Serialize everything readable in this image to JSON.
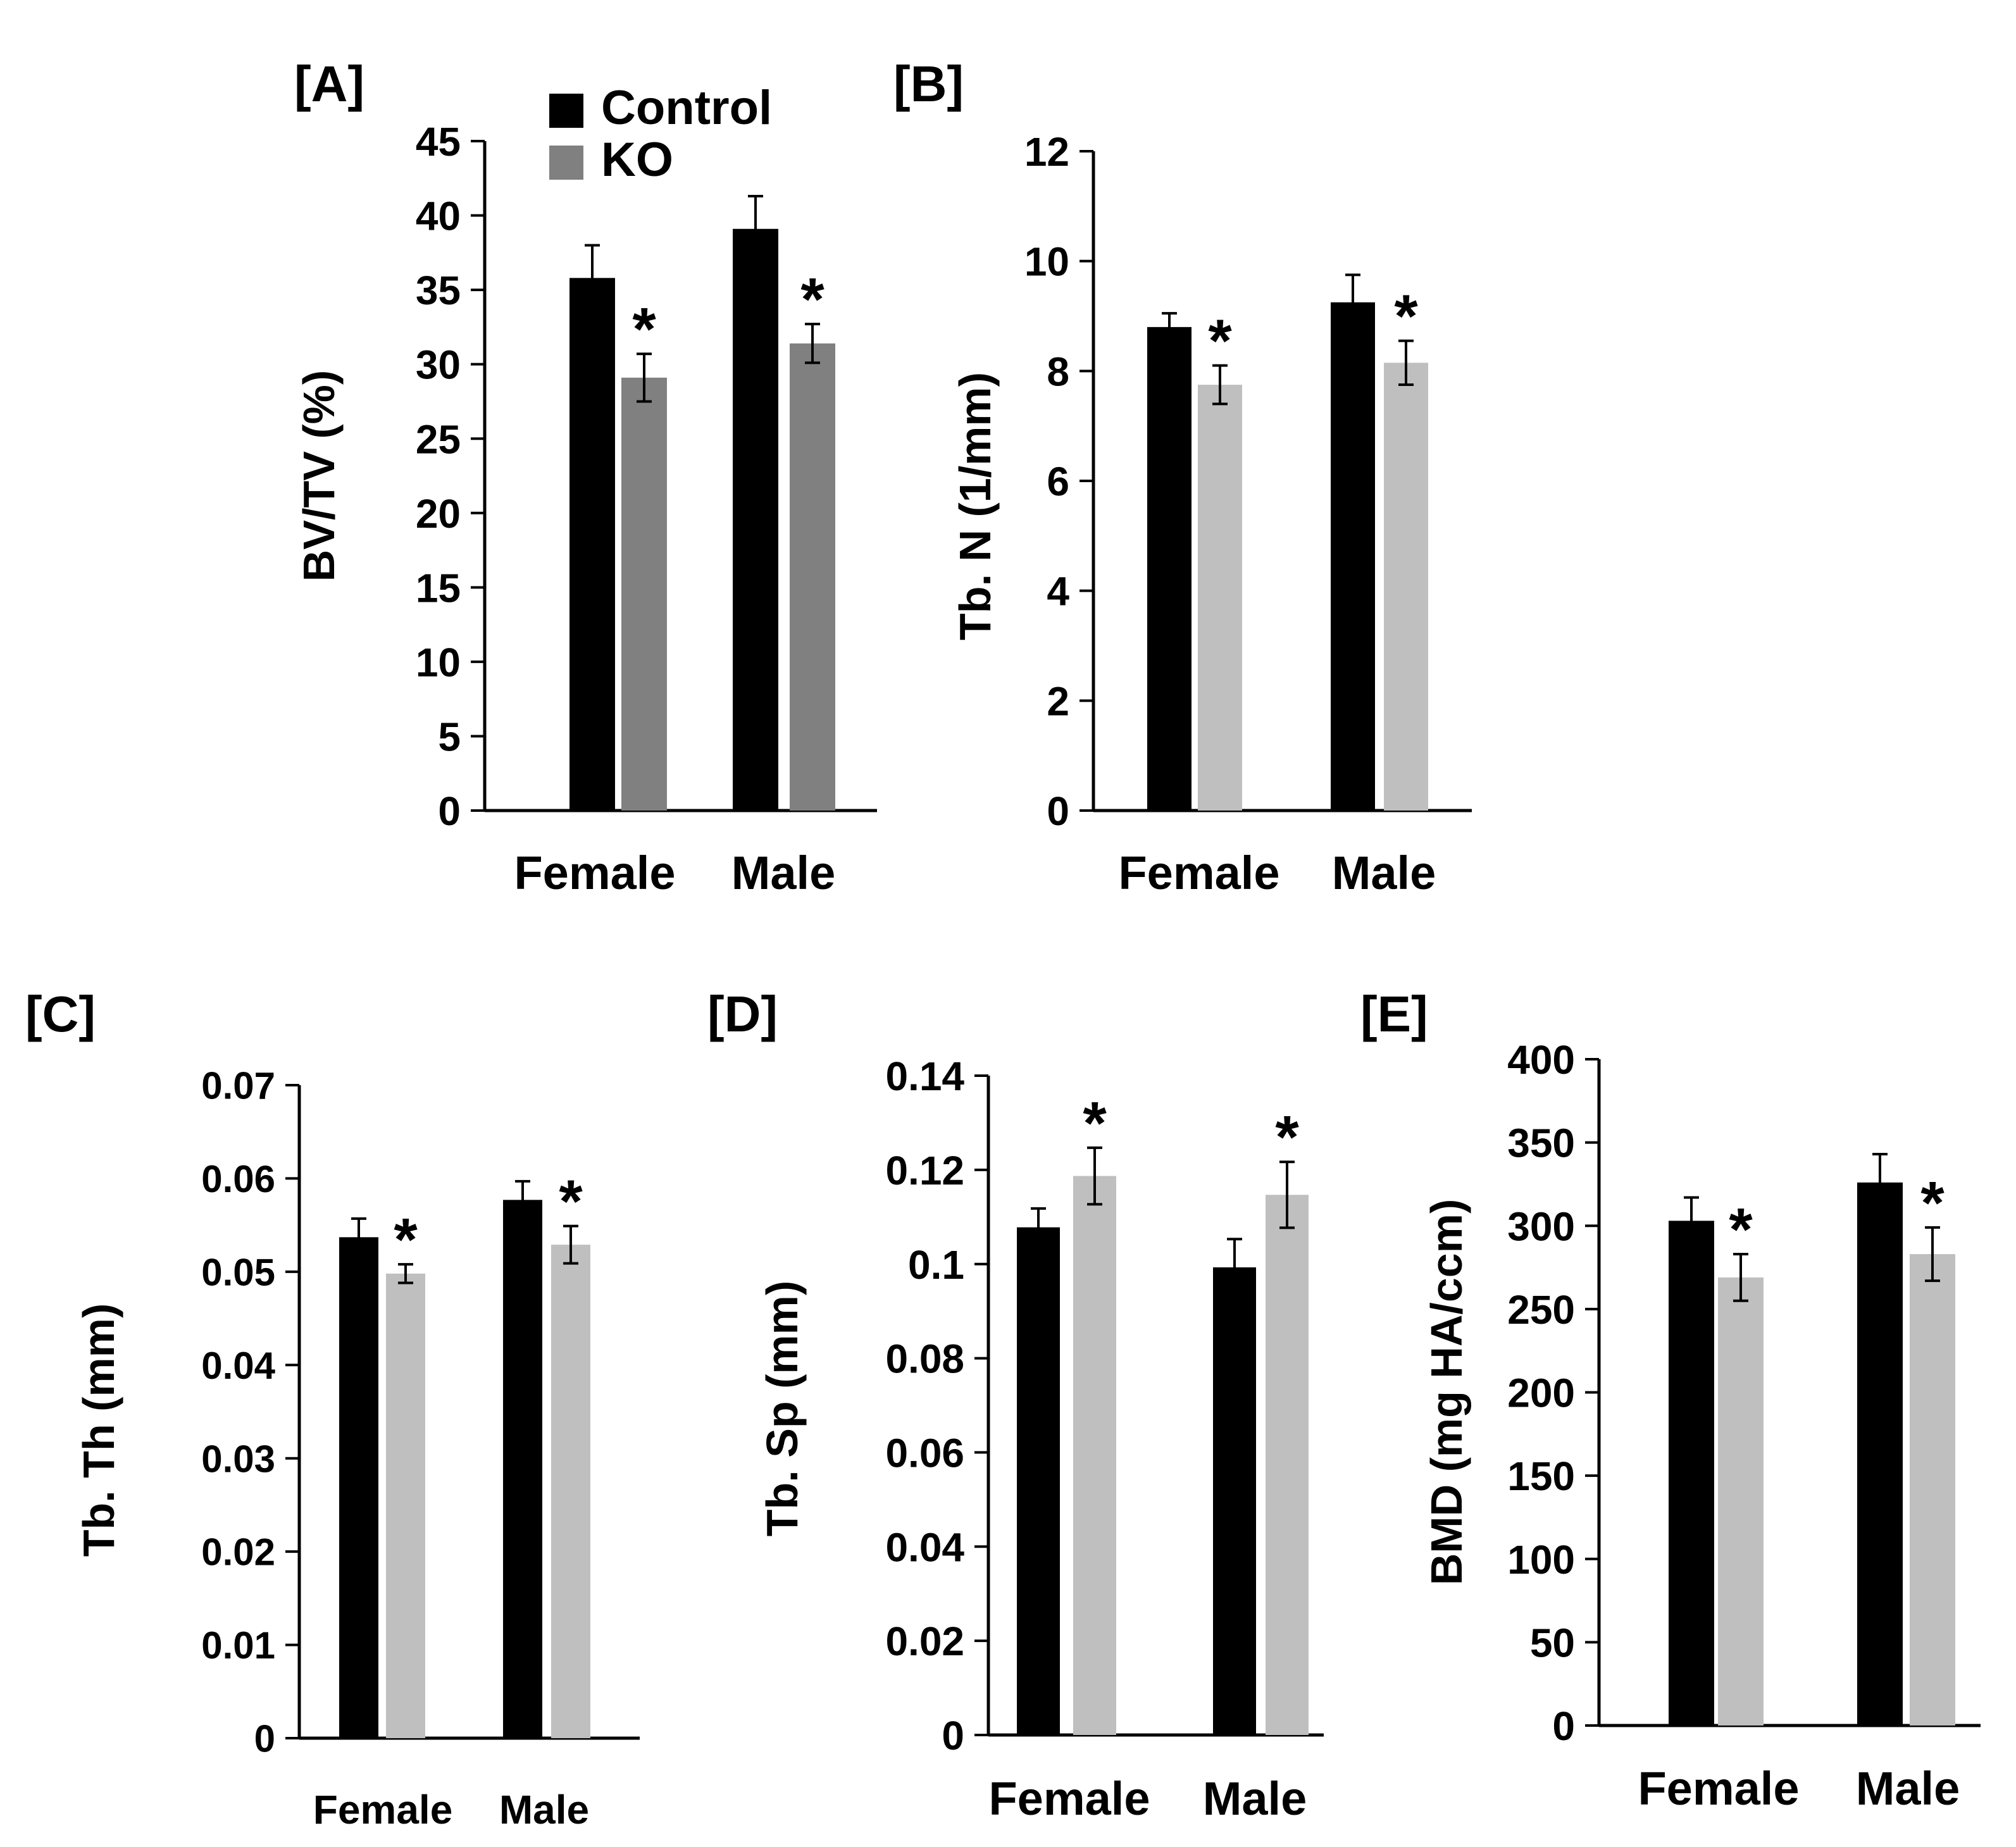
{
  "legend": {
    "items": [
      {
        "label": "Control",
        "color": "#000000"
      },
      {
        "label": "KO",
        "color": "#808080"
      }
    ]
  },
  "chart_data": [
    {
      "panel": "[A]",
      "type": "bar",
      "ylabel": "BV/TV (%)",
      "ylim": [
        0,
        45
      ],
      "yticks": [
        0,
        5,
        10,
        15,
        20,
        25,
        30,
        35,
        40,
        45
      ],
      "categories": [
        "Female",
        "Male"
      ],
      "series": [
        {
          "name": "Control",
          "color": "#000000",
          "values": [
            35.8,
            39.1
          ],
          "errors": [
            2.2,
            2.2
          ]
        },
        {
          "name": "KO",
          "color": "#808080",
          "values": [
            29.1,
            31.4
          ],
          "errors": [
            1.6,
            1.3
          ]
        }
      ],
      "significance": [
        [
          false,
          true
        ],
        [
          false,
          true
        ]
      ]
    },
    {
      "panel": "[B]",
      "type": "bar",
      "ylabel": "Tb. N (1/mm)",
      "ylim": [
        0,
        12
      ],
      "yticks": [
        0,
        2,
        4,
        6,
        8,
        10,
        12
      ],
      "categories": [
        "Female",
        "Male"
      ],
      "series": [
        {
          "name": "Control",
          "color": "#000000",
          "values": [
            8.8,
            9.25
          ],
          "errors": [
            0.25,
            0.5
          ]
        },
        {
          "name": "KO",
          "color": "#bfbfbf",
          "values": [
            7.75,
            8.15
          ],
          "errors": [
            0.35,
            0.4
          ]
        }
      ],
      "significance": [
        [
          false,
          true
        ],
        [
          false,
          true
        ]
      ]
    },
    {
      "panel": "[C]",
      "type": "bar",
      "ylabel": "Tb. Th (mm)",
      "ylim": [
        0,
        0.07
      ],
      "yticks": [
        0,
        0.01,
        0.02,
        0.03,
        0.04,
        0.05,
        0.06,
        0.07
      ],
      "categories": [
        "Female",
        "Male"
      ],
      "series": [
        {
          "name": "Control",
          "color": "#000000",
          "values": [
            0.0537,
            0.0577
          ],
          "errors": [
            0.002,
            0.002
          ]
        },
        {
          "name": "KO",
          "color": "#bfbfbf",
          "values": [
            0.0498,
            0.0529
          ],
          "errors": [
            0.001,
            0.002
          ]
        }
      ],
      "significance": [
        [
          false,
          true
        ],
        [
          false,
          true
        ]
      ]
    },
    {
      "panel": "[D]",
      "type": "bar",
      "ylabel": "Tb. Sp (mm)",
      "ylim": [
        0,
        0.14
      ],
      "yticks": [
        0,
        0.02,
        0.04,
        0.06,
        0.08,
        0.1,
        0.12,
        0.14
      ],
      "categories": [
        "Female",
        "Male"
      ],
      "series": [
        {
          "name": "Control",
          "color": "#000000",
          "values": [
            0.1078,
            0.0993
          ],
          "errors": [
            0.004,
            0.006
          ]
        },
        {
          "name": "KO",
          "color": "#bfbfbf",
          "values": [
            0.1187,
            0.1147
          ],
          "errors": [
            0.006,
            0.007
          ]
        }
      ],
      "significance": [
        [
          false,
          true
        ],
        [
          false,
          true
        ]
      ]
    },
    {
      "panel": "[E]",
      "type": "bar",
      "ylabel": "BMD (mg HA/ccm)",
      "ylim": [
        0,
        400
      ],
      "yticks": [
        0,
        50,
        100,
        150,
        200,
        250,
        300,
        350,
        400
      ],
      "categories": [
        "Female",
        "Male"
      ],
      "series": [
        {
          "name": "Control",
          "color": "#000000",
          "values": [
            303,
            326
          ],
          "errors": [
            14,
            17
          ]
        },
        {
          "name": "KO",
          "color": "#bfbfbf",
          "values": [
            269,
            283
          ],
          "errors": [
            14,
            16
          ]
        }
      ],
      "significance": [
        [
          false,
          true
        ],
        [
          false,
          true
        ]
      ]
    }
  ]
}
